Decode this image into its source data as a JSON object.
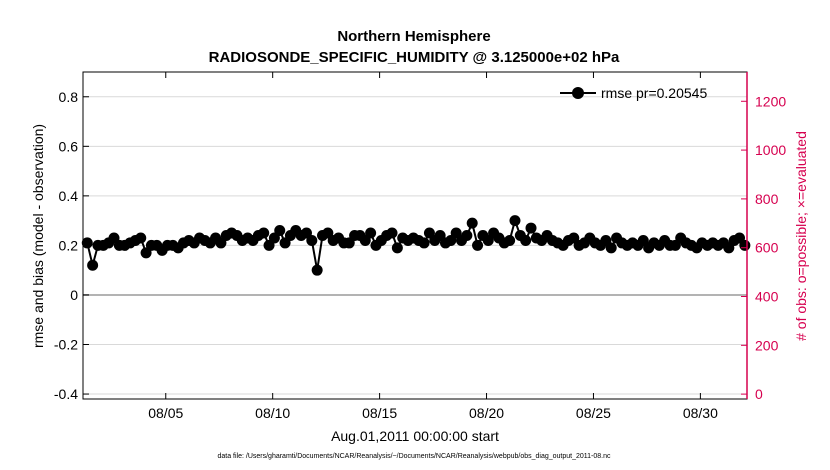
{
  "chart_data": {
    "type": "line",
    "title": "Northern Hemisphere",
    "subtitle": "RADIOSONDE_SPECIFIC_HUMIDITY @ 3.125000e+02 hPa",
    "xlabel": "Aug.01,2011 00:00:00 start",
    "ylabel": "rmse and bias (model - observation)",
    "ylabel_right": "# of obs: o=possible; ×=evaluated",
    "footnote": "data file: /Users/gharamti/Documents/NCAR/Reanalysis/~/Documents/NCAR/Reanalysis/webpub/obs_diag_output_2011-08.nc",
    "xlim": [
      0.8,
      31.85
    ],
    "ylim": [
      -0.42,
      0.9
    ],
    "ylim_right": [
      -20,
      1320
    ],
    "x_ticks": [
      4.67,
      9.67,
      14.67,
      19.67,
      24.67,
      29.67
    ],
    "x_tick_labels": [
      "08/05",
      "08/10",
      "08/15",
      "08/20",
      "08/25",
      "08/30"
    ],
    "y_ticks": [
      -0.4,
      -0.2,
      0,
      0.2,
      0.4,
      0.6,
      0.8
    ],
    "y_tick_labels": [
      "-0.4",
      "-0.2",
      "0",
      "0.2",
      "0.4",
      "0.6",
      "0.8"
    ],
    "y_ticks_right": [
      0,
      200,
      400,
      600,
      800,
      1000,
      1200
    ],
    "y_tick_labels_right": [
      "0",
      "200",
      "400",
      "600",
      "800",
      "1000",
      "1200"
    ],
    "zero_line": 0,
    "legend_position": "top-right",
    "colors": {
      "rmse": "#000000",
      "bias": "#007b7b",
      "obs": "#d6004f",
      "grid": "#d9d9d9",
      "zero": "#b3b3b3"
    },
    "series": [
      {
        "name": "rmse pr=0.20545",
        "axis": "left",
        "marker": "circle",
        "x": [
          1.0,
          1.25,
          1.5,
          1.75,
          2.0,
          2.25,
          2.5,
          2.75,
          3.0,
          3.25,
          3.5,
          3.75,
          4.0,
          4.25,
          4.5,
          4.75,
          5.0,
          5.25,
          5.5,
          5.75,
          6.0,
          6.25,
          6.5,
          6.75,
          7.0,
          7.25,
          7.5,
          7.75,
          8.0,
          8.25,
          8.5,
          8.75,
          9.0,
          9.25,
          9.5,
          9.75,
          10.0,
          10.25,
          10.5,
          10.75,
          11.0,
          11.25,
          11.5,
          11.75,
          12.0,
          12.25,
          12.5,
          12.75,
          13.0,
          13.25,
          13.5,
          13.75,
          14.0,
          14.25,
          14.5,
          14.75,
          15.0,
          15.25,
          15.5,
          15.75,
          16.0,
          16.25,
          16.5,
          16.75,
          17.0,
          17.25,
          17.5,
          17.75,
          18.0,
          18.25,
          18.5,
          18.75,
          19.0,
          19.25,
          19.5,
          19.75,
          20.0,
          20.25,
          20.5,
          20.75,
          21.0,
          21.25,
          21.5,
          21.75,
          22.0,
          22.25,
          22.5,
          22.75,
          23.0,
          23.25,
          23.5,
          23.75,
          24.0,
          24.25,
          24.5,
          24.75,
          25.0,
          25.25,
          25.5,
          25.75,
          26.0,
          26.25,
          26.5,
          26.75,
          27.0,
          27.25,
          27.5,
          27.75,
          28.0,
          28.25,
          28.5,
          28.75,
          29.0,
          29.25,
          29.5,
          29.75,
          30.0,
          30.25,
          30.5,
          30.75,
          31.0,
          31.25,
          31.5,
          31.75
        ],
        "values": [
          0.21,
          0.12,
          0.2,
          0.2,
          0.21,
          0.23,
          0.2,
          0.2,
          0.21,
          0.22,
          0.23,
          0.17,
          0.2,
          0.2,
          0.18,
          0.2,
          0.2,
          0.19,
          0.21,
          0.22,
          0.21,
          0.23,
          0.22,
          0.21,
          0.23,
          0.21,
          0.24,
          0.25,
          0.24,
          0.22,
          0.23,
          0.22,
          0.24,
          0.25,
          0.2,
          0.23,
          0.26,
          0.21,
          0.24,
          0.26,
          0.24,
          0.25,
          0.22,
          0.1,
          0.24,
          0.25,
          0.22,
          0.23,
          0.21,
          0.21,
          0.24,
          0.24,
          0.22,
          0.25,
          0.2,
          0.22,
          0.24,
          0.25,
          0.19,
          0.23,
          0.22,
          0.23,
          0.22,
          0.21,
          0.25,
          0.22,
          0.24,
          0.21,
          0.22,
          0.25,
          0.22,
          0.24,
          0.29,
          0.2,
          0.24,
          0.22,
          0.25,
          0.23,
          0.21,
          0.22,
          0.3,
          0.24,
          0.22,
          0.27,
          0.23,
          0.22,
          0.24,
          0.22,
          0.21,
          0.2,
          0.22,
          0.23,
          0.2,
          0.21,
          0.23,
          0.21,
          0.2,
          0.22,
          0.19,
          0.23,
          0.21,
          0.2,
          0.21,
          0.2,
          0.22,
          0.19,
          0.21,
          0.2,
          0.22,
          0.2,
          0.2,
          0.23,
          0.21,
          0.2,
          0.19,
          0.21,
          0.2,
          0.21,
          0.2,
          0.21,
          0.19,
          0.22,
          0.23,
          0.2
        ],
        "x_pts": [
          1.0,
          1.25,
          1.5,
          1.75,
          2.0,
          2.25,
          2.5,
          2.75,
          3.0,
          3.25,
          3.5,
          3.75,
          4.0,
          4.25,
          4.5,
          4.75,
          5.0,
          5.25,
          5.5,
          5.75,
          6.0,
          6.25,
          6.5,
          6.75,
          7.0,
          7.25,
          7.5,
          7.75,
          8.0,
          8.25,
          8.5,
          8.75,
          9.0,
          9.25,
          9.5,
          9.75,
          10.0,
          10.25,
          10.5,
          10.75,
          11.0,
          11.25,
          11.5,
          11.75,
          12.0,
          12.25,
          12.5,
          12.75,
          13.0,
          13.25,
          13.5,
          13.75,
          14.0,
          14.25,
          14.5,
          14.75,
          15.0,
          15.25,
          15.5,
          15.75,
          16.0,
          16.25,
          16.5,
          16.75,
          17.0,
          17.25,
          17.5,
          17.75,
          18.0,
          18.25,
          18.5,
          18.75,
          19.0,
          19.25,
          19.5,
          19.75,
          20.0,
          20.25,
          20.5,
          20.75,
          21.0,
          21.25,
          21.5,
          21.75,
          22.0,
          22.25,
          22.5,
          22.75,
          23.0,
          23.25,
          23.5,
          23.75,
          24.0,
          24.25,
          24.5,
          24.75,
          25.0,
          25.25,
          25.5,
          25.75,
          26.0,
          26.25,
          26.5,
          26.75,
          27.0,
          27.25,
          27.5,
          27.75,
          28.0,
          28.25,
          28.5,
          28.75,
          29.0,
          29.25,
          29.5,
          29.75,
          30.0,
          30.25,
          30.5,
          30.75,
          31.0,
          31.25,
          31.5,
          31.75
        ],
        "values_pts": [
          0.21,
          0.12,
          0.2,
          0.2,
          0.21,
          0.23,
          0.2,
          0.2,
          0.21,
          0.22,
          0.23,
          0.17,
          0.2,
          0.2,
          0.18,
          0.2,
          0.2,
          0.19,
          0.21,
          0.22,
          0.21,
          0.23,
          0.22,
          0.21,
          0.23,
          0.21,
          0.24,
          0.25,
          0.24,
          0.22,
          0.23,
          0.22,
          0.24,
          0.25,
          0.2,
          0.23,
          0.26,
          0.21,
          0.24,
          0.26,
          0.24,
          0.25,
          0.22,
          0.1,
          0.24,
          0.25,
          0.22,
          0.23,
          0.21,
          0.21,
          0.24,
          0.24,
          0.22,
          0.25,
          0.2,
          0.22,
          0.24,
          0.25,
          0.19,
          0.23,
          0.22,
          0.23,
          0.22,
          0.21,
          0.25,
          0.22,
          0.24,
          0.21,
          0.22,
          0.25,
          0.22,
          0.24,
          0.29,
          0.2,
          0.24,
          0.22,
          0.25,
          0.23,
          0.21,
          0.22,
          0.3,
          0.24,
          0.22,
          0.27,
          0.23,
          0.22,
          0.24,
          0.22,
          0.21,
          0.2,
          0.22,
          0.23,
          0.2,
          0.21,
          0.23,
          0.21,
          0.2,
          0.22,
          0.19,
          0.23,
          0.21,
          0.2,
          0.21,
          0.2,
          0.22,
          0.19,
          0.21,
          0.2,
          0.22,
          0.2,
          0.2,
          0.23,
          0.21,
          0.2,
          0.19,
          0.21,
          0.2,
          0.21,
          0.2,
          0.21,
          0.19,
          0.22,
          0.23,
          0.2
        ]
      }
    ]
  }
}
